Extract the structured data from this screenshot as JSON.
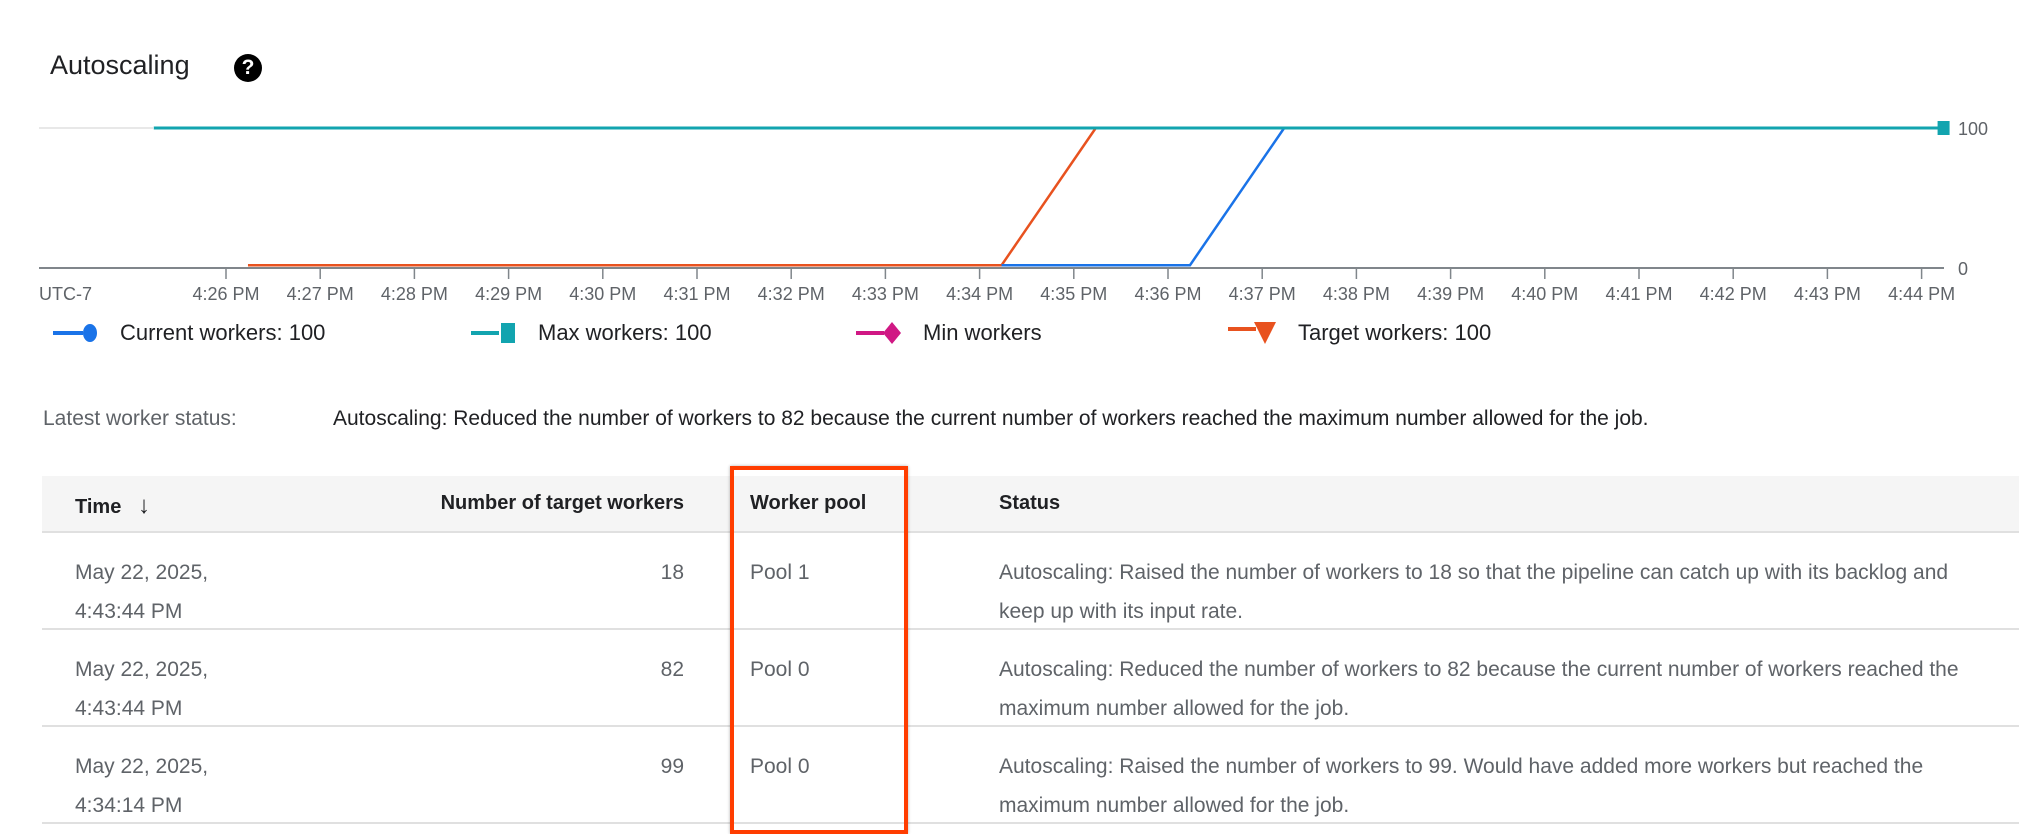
{
  "header": {
    "title": "Autoscaling",
    "help_icon": "help-circle-icon",
    "help_glyph": "?"
  },
  "chart_data": {
    "type": "line",
    "title": "",
    "timezone_label": "UTC-7",
    "x_ticks": [
      "4:26 PM",
      "4:27 PM",
      "4:28 PM",
      "4:29 PM",
      "4:30 PM",
      "4:31 PM",
      "4:32 PM",
      "4:33 PM",
      "4:34 PM",
      "4:35 PM",
      "4:36 PM",
      "4:37 PM",
      "4:38 PM",
      "4:39 PM",
      "4:40 PM",
      "4:41 PM",
      "4:42 PM",
      "4:43 PM",
      "4:44 PM"
    ],
    "y_ticks": [
      "0",
      "100"
    ],
    "ylim": [
      0,
      100
    ],
    "y_axis_side": "right",
    "grid": false,
    "legend_placement": "bottom",
    "series": [
      {
        "name": "Max workers",
        "legend": "Max workers:  100",
        "color": "#12a4af",
        "marker": "square",
        "points": [
          [
            "4:25:14 PM",
            100
          ],
          [
            "4:44:14 PM",
            100
          ]
        ]
      },
      {
        "name": "Target workers",
        "legend": "Target workers:  100",
        "color": "#e8521f",
        "marker": "triangle-down",
        "points": [
          [
            "4:26:14 PM",
            2
          ],
          [
            "4:34:14 PM",
            2
          ],
          [
            "4:35:14 PM",
            100
          ]
        ]
      },
      {
        "name": "Current workers",
        "legend": "Current workers:  100",
        "color": "#1a73e8",
        "marker": "circle",
        "points": [
          [
            "4:34:14 PM",
            2
          ],
          [
            "4:36:14 PM",
            2
          ],
          [
            "4:37:14 PM",
            100
          ]
        ]
      },
      {
        "name": "Min workers",
        "legend": "Min workers",
        "color": "#d01884",
        "marker": "diamond",
        "points": []
      }
    ]
  },
  "latest_status": {
    "label": "Latest worker status:",
    "value": "Autoscaling: Reduced the number of workers to 82 because the current number of workers reached the maximum number allowed for the job."
  },
  "table": {
    "columns": {
      "time": "Time",
      "sort_icon": "arrow-down-icon",
      "sort_glyph": "↓",
      "target": "Number of target workers",
      "pool": "Worker pool",
      "status": "Status"
    },
    "rows": [
      {
        "date": "May 22, 2025,",
        "time": "4:43:44 PM",
        "target": "18",
        "pool": "Pool 1",
        "status": "Autoscaling: Raised the number of workers to 18 so that the pipeline can catch up with its backlog and keep up with its input rate."
      },
      {
        "date": "May 22, 2025,",
        "time": "4:43:44 PM",
        "target": "82",
        "pool": "Pool 0",
        "status": "Autoscaling: Reduced the number of workers to 82 because the current number of workers reached the maximum number allowed for the job."
      },
      {
        "date": "May 22, 2025,",
        "time": "4:34:14 PM",
        "target": "99",
        "pool": "Pool 0",
        "status": "Autoscaling: Raised the number of workers to 99. Would have added more workers but reached the maximum number allowed for the job."
      }
    ]
  },
  "highlight_color": "#ff3d00"
}
